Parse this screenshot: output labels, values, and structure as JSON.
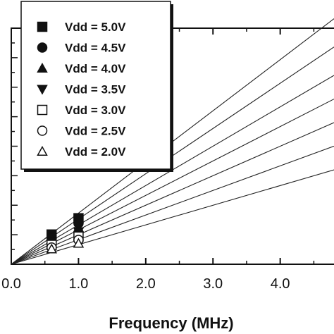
{
  "chart_data": {
    "type": "scatter",
    "xlabel": "Frequency (MHz)",
    "ylabel": "",
    "title": "",
    "xlim": [
      0,
      4.8
    ],
    "ylim": [
      0,
      1
    ],
    "x_ticks": [
      "0.0",
      "1.0",
      "2.0",
      "3.0",
      "4.0"
    ],
    "x_tick_values": [
      0,
      1,
      2,
      3,
      4
    ],
    "y_minor_ticks": 16,
    "legend_position": "top-left",
    "series": [
      {
        "name": "Vdd = 5.0V",
        "marker": "square-filled",
        "x": [
          0.6,
          1.0
        ],
        "y": [
          0.126,
          0.195
        ],
        "fit_slope": 0.2167
      },
      {
        "name": "Vdd = 4.5V",
        "marker": "circle-filled",
        "x": [
          0.6,
          1.0
        ],
        "y": [
          0.114,
          0.173
        ],
        "fit_slope": 0.1917
      },
      {
        "name": "Vdd = 4.0V",
        "marker": "triangle-up-filled",
        "x": [
          0.6,
          1.0
        ],
        "y": [
          0.102,
          0.154
        ],
        "fit_slope": 0.1667
      },
      {
        "name": "Vdd = 3.5V",
        "marker": "triangle-down-filled",
        "x": [
          0.6,
          1.0
        ],
        "y": [
          0.093,
          0.138
        ],
        "fit_slope": 0.1458
      },
      {
        "name": "Vdd = 3.0V",
        "marker": "square-open",
        "x": [
          0.6,
          1.0
        ],
        "y": [
          0.082,
          0.117
        ],
        "fit_slope": 0.125
      },
      {
        "name": "Vdd = 2.5V",
        "marker": "circle-open",
        "x": [
          0.6,
          1.0
        ],
        "y": [
          0.071,
          0.103
        ],
        "fit_slope": 0.1042
      },
      {
        "name": "Vdd = 2.0V",
        "marker": "triangle-up-open",
        "x": [
          0.6,
          1.0
        ],
        "y": [
          0.064,
          0.088
        ],
        "fit_slope": 0.0833
      }
    ]
  }
}
